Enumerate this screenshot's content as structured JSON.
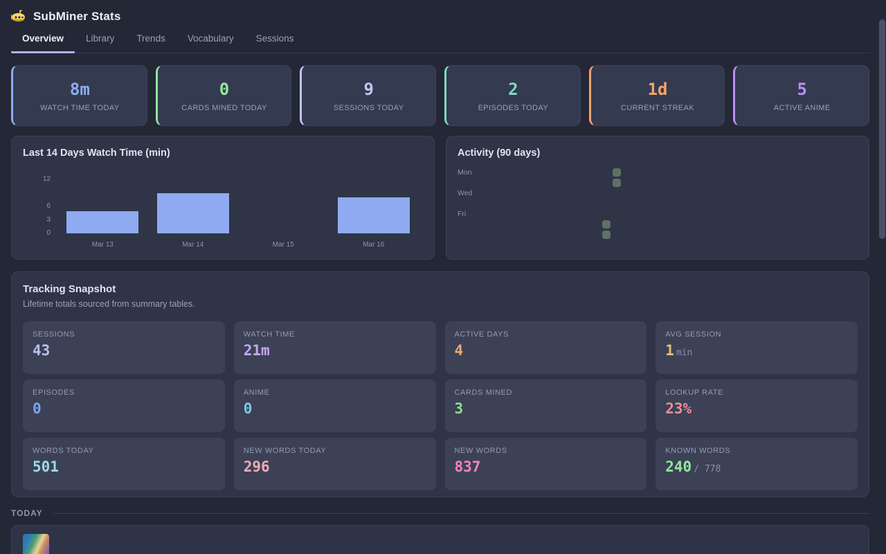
{
  "header": {
    "title": "SubMiner Stats",
    "logo": "submarine-icon"
  },
  "tabs": [
    {
      "label": "Overview",
      "active": true
    },
    {
      "label": "Library",
      "active": false
    },
    {
      "label": "Trends",
      "active": false
    },
    {
      "label": "Vocabulary",
      "active": false
    },
    {
      "label": "Sessions",
      "active": false
    }
  ],
  "stat_cards": [
    {
      "value": "8m",
      "label": "WATCH TIME TODAY",
      "color": "#8caef2"
    },
    {
      "value": "0",
      "label": "CARDS MINED TODAY",
      "color": "#93e69c"
    },
    {
      "value": "9",
      "label": "SESSIONS TODAY",
      "color": "#bcc8f5"
    },
    {
      "value": "2",
      "label": "EPISODES TODAY",
      "color": "#7fd9c4"
    },
    {
      "value": "1d",
      "label": "CURRENT STREAK",
      "color": "#f2a46e"
    },
    {
      "value": "5",
      "label": "ACTIVE ANIME",
      "color": "#c08df2"
    }
  ],
  "chart_data": {
    "type": "bar",
    "title": "Last 14 Days Watch Time (min)",
    "categories": [
      "Mar 13",
      "Mar 14",
      "Mar 15",
      "Mar 16"
    ],
    "values": [
      5,
      9,
      0,
      8
    ],
    "xlabel": "",
    "ylabel": "",
    "ylim": [
      0,
      12
    ],
    "yticks": [
      12,
      6,
      3,
      0
    ],
    "bar_color": "#8faaf0",
    "grid": false,
    "legend": false
  },
  "activity": {
    "title": "Activity (90 days)",
    "day_labels": [
      {
        "label": "Mon",
        "row": 0
      },
      {
        "label": "Wed",
        "row": 2
      },
      {
        "label": "Fri",
        "row": 4
      }
    ],
    "rows": 7,
    "cols": 13,
    "cell_color": "#5e7264",
    "active_cells": [
      [
        11,
        5
      ],
      [
        11,
        6
      ],
      [
        12,
        0
      ],
      [
        12,
        1
      ]
    ]
  },
  "tracking": {
    "title": "Tracking Snapshot",
    "subtitle": "Lifetime totals sourced from summary tables.",
    "tiles": [
      {
        "label": "SESSIONS",
        "value": "43",
        "color": "#b7bff2"
      },
      {
        "label": "WATCH TIME",
        "value": "21m",
        "color": "#c9a6f5"
      },
      {
        "label": "ACTIVE DAYS",
        "value": "4",
        "color": "#f2a46e"
      },
      {
        "label": "AVG SESSION",
        "value": "1",
        "suffix": "min",
        "color": "#e6c26e"
      },
      {
        "label": "EPISODES",
        "value": "0",
        "color": "#7da2f2"
      },
      {
        "label": "ANIME",
        "value": "0",
        "color": "#7fc8e8"
      },
      {
        "label": "CARDS MINED",
        "value": "3",
        "color": "#8ede8a"
      },
      {
        "label": "LOOKUP RATE",
        "value": "23%",
        "color": "#f28b9b"
      },
      {
        "label": "WORDS TODAY",
        "value": "501",
        "color": "#9adbe8"
      },
      {
        "label": "NEW WORDS TODAY",
        "value": "296",
        "color": "#f2aab4"
      },
      {
        "label": "NEW WORDS",
        "value": "837",
        "color": "#f585bb"
      },
      {
        "label": "KNOWN WORDS",
        "value": "240",
        "suffix": "/ 778",
        "color": "#93e69e"
      }
    ]
  },
  "today": {
    "label": "TODAY"
  }
}
